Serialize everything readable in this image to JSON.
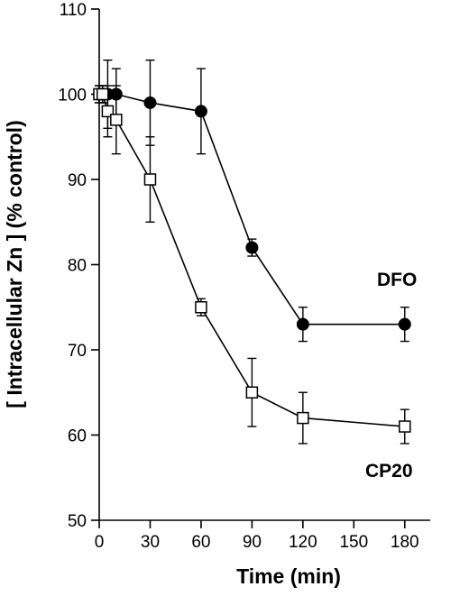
{
  "chart_data": {
    "type": "line",
    "xlabel": "Time (min)",
    "ylabel": "[ Intracellular Zn ]  (% control)",
    "xlim": [
      0,
      195
    ],
    "ylim": [
      50,
      110
    ],
    "xticks": [
      0,
      30,
      60,
      90,
      120,
      150,
      180
    ],
    "yticks": [
      50,
      60,
      70,
      80,
      90,
      100,
      110
    ],
    "grid": false,
    "legend": "inline labels",
    "series": [
      {
        "name": "DFO",
        "marker": "filled-circle",
        "color": "#000000",
        "x": [
          0,
          2,
          5,
          10,
          30,
          60,
          90,
          120,
          180
        ],
        "y": [
          100,
          100,
          100,
          100,
          99,
          98,
          82,
          73,
          73
        ],
        "err": [
          1,
          1,
          4,
          3,
          5,
          5,
          1,
          2,
          2
        ]
      },
      {
        "name": "CP20",
        "marker": "open-square",
        "color": "#000000",
        "x": [
          0,
          2,
          5,
          10,
          30,
          60,
          90,
          120,
          180
        ],
        "y": [
          100,
          100,
          98,
          97,
          90,
          75,
          65,
          62,
          61
        ],
        "err": [
          1,
          1,
          3,
          4,
          5,
          1,
          4,
          3,
          2
        ]
      }
    ]
  }
}
